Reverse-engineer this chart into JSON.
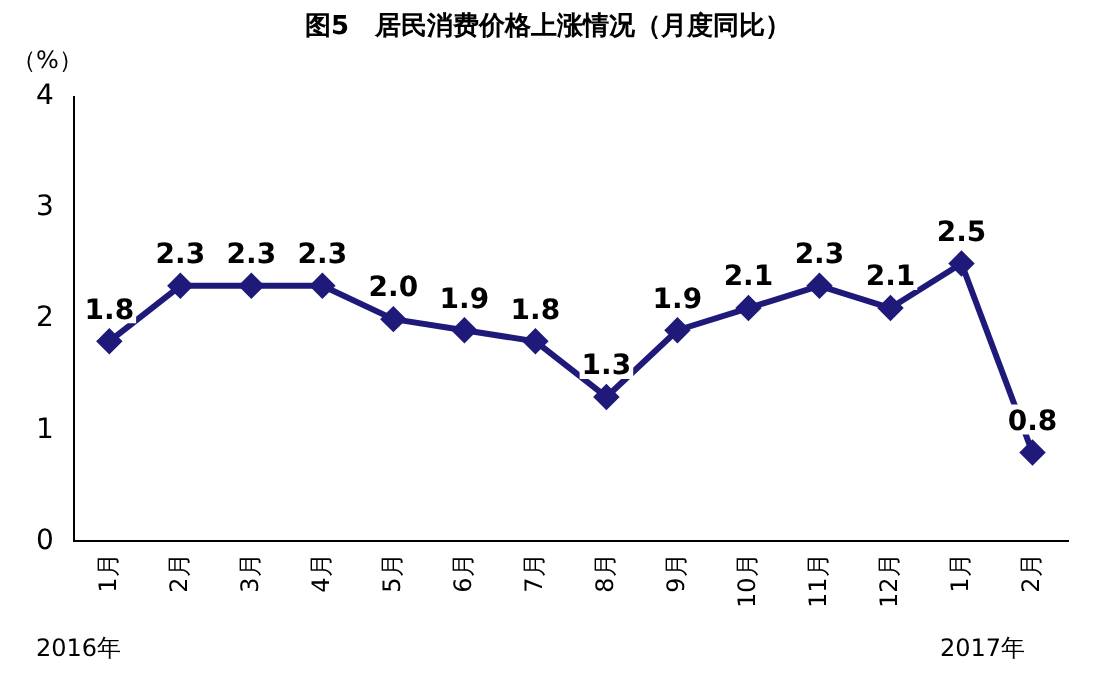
{
  "chart_data": {
    "type": "line",
    "title": "图5　居民消费价格上涨情况（月度同比）",
    "ylabel": "（%）",
    "categories": [
      "1月",
      "2月",
      "3月",
      "4月",
      "5月",
      "6月",
      "7月",
      "8月",
      "9月",
      "10月",
      "11月",
      "12月",
      "1月",
      "2月"
    ],
    "series": [
      {
        "color": "#1f1a7a",
        "values": [
          1.8,
          2.3,
          2.3,
          2.3,
          2.0,
          1.9,
          1.8,
          1.3,
          1.9,
          2.1,
          2.3,
          2.1,
          2.5,
          0.8
        ],
        "value_labels": [
          "1.8",
          "2.3",
          "2.3",
          "2.3",
          "2.0",
          "1.9",
          "1.8",
          "1.3",
          "1.9",
          "2.1",
          "2.3",
          "2.1",
          "2.5",
          "0.8"
        ]
      }
    ],
    "ylim": [
      0,
      4
    ],
    "yticks": [
      0,
      1,
      2,
      3,
      4
    ],
    "grid": false,
    "legend": false,
    "marker": "diamond",
    "line_style": "solid",
    "annotations": [
      "2016年",
      "2017年"
    ]
  }
}
